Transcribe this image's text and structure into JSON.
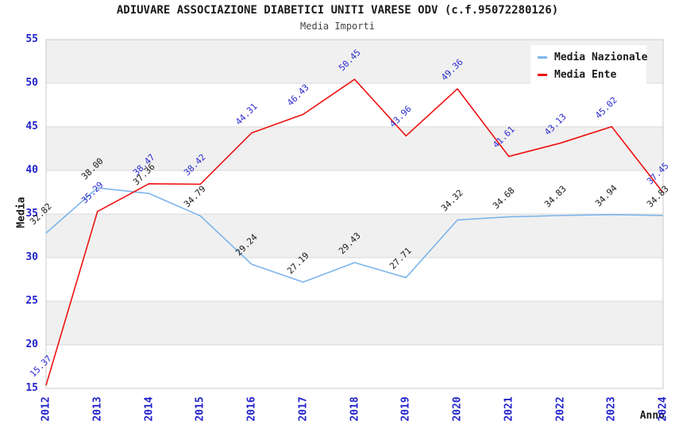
{
  "chart_data": {
    "type": "line",
    "title": "ADIUVARE ASSOCIAZIONE DIABETICI UNITI VARESE ODV (c.f.95072280126)",
    "subtitle": "Media Importi",
    "xlabel": "Anno",
    "ylabel": "Media",
    "ylim": [
      15,
      55
    ],
    "yticks": [
      15,
      20,
      25,
      30,
      35,
      40,
      45,
      50,
      55
    ],
    "categories": [
      "2012",
      "2013",
      "2014",
      "2015",
      "2016",
      "2017",
      "2018",
      "2019",
      "2020",
      "2021",
      "2022",
      "2023",
      "2024"
    ],
    "grid": "horizontal-only",
    "legend_position": "top-right",
    "band_color": "#f0f0f0",
    "gridline_color": "#d9d9d9",
    "plot_border_color": "#c9c9c9",
    "axis_tick_color": "#2323cc",
    "series": [
      {
        "name": "Media Nazionale",
        "color": "#7cb5ec",
        "label_color": "#1a1a1a",
        "values": [
          32.82,
          38.0,
          37.36,
          34.79,
          29.24,
          27.19,
          29.43,
          27.71,
          34.32,
          34.68,
          34.83,
          34.94,
          34.83
        ]
      },
      {
        "name": "Media Ente",
        "color": "#ee1111",
        "label_color": "#2a2ad0",
        "values": [
          15.37,
          35.29,
          38.47,
          38.42,
          44.31,
          46.43,
          50.45,
          43.96,
          49.36,
          41.61,
          43.13,
          45.02,
          37.45
        ]
      }
    ]
  }
}
